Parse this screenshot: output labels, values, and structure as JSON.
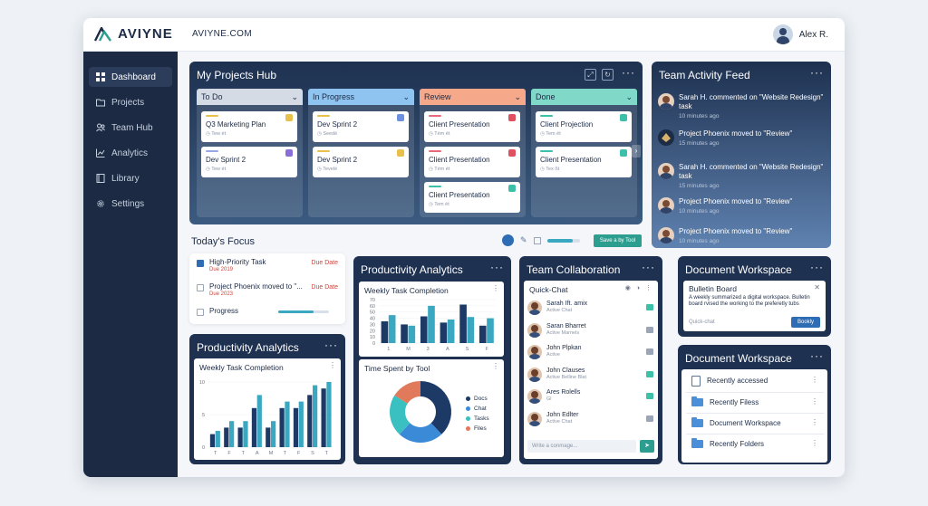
{
  "app": {
    "brand": "AVIYNE",
    "domain": "AVIYNE.COM",
    "user": "Alex R."
  },
  "sidebar": {
    "items": [
      {
        "label": "Dashboard",
        "icon": "grid-icon",
        "active": true
      },
      {
        "label": "Projects",
        "icon": "folder-icon"
      },
      {
        "label": "Team Hub",
        "icon": "people-icon"
      },
      {
        "label": "Analytics",
        "icon": "chart-icon"
      },
      {
        "label": "Library",
        "icon": "book-icon"
      },
      {
        "label": "Settings",
        "icon": "gear-icon"
      }
    ]
  },
  "hub": {
    "title": "My Projects Hub",
    "columns": [
      {
        "label": "To Do",
        "color": "#d4dbe4",
        "cards": [
          {
            "title": "Q3 Marketing Plan",
            "meta": "Tew ét",
            "bar": "#e8c04a",
            "check": "#e8c04a"
          },
          {
            "title": "Dev Sprint 2",
            "meta": "Tew ét",
            "bar": "#9aa6e8",
            "check": "#8a6ed8"
          }
        ]
      },
      {
        "label": "In Progress",
        "color": "#8fc3f0",
        "cards": [
          {
            "title": "Dev Sprint 2",
            "meta": "Seedé",
            "bar": "#e8c04a",
            "check": "#6d8fe0"
          },
          {
            "title": "Dev Sprint 2",
            "meta": "Tevelé",
            "bar": "#e8c04a",
            "check": "#e8c04a"
          }
        ]
      },
      {
        "label": "Review",
        "color": "#f5a98a",
        "cards": [
          {
            "title": "Client Presentation",
            "meta": "Tém ét",
            "bar": "#e86a7a",
            "check": "#e05060"
          },
          {
            "title": "Client Presentation",
            "meta": "Tém ét",
            "bar": "#e86a7a",
            "check": "#e05060"
          },
          {
            "title": "Client Presentation",
            "meta": "Tem ét",
            "bar": "#3cc0a8",
            "check": "#3cc0a8"
          }
        ]
      },
      {
        "label": "Done",
        "color": "#7fd8c8",
        "cards": [
          {
            "title": "Client Projection",
            "meta": "Tem ét",
            "bar": "#3cc0a8",
            "check": "#3cc0a8"
          },
          {
            "title": "Client Presentation",
            "meta": "Tex ßt",
            "bar": "#3cc0a8",
            "check": "#3cc0a8"
          }
        ]
      }
    ]
  },
  "feed": {
    "title": "Team Activity Feed",
    "items": [
      {
        "text": "Sarah H. commented on \"Website Redesign\" task",
        "time": "10 minutes ago",
        "avatar": "person"
      },
      {
        "text": "Project Phoenix moved to \"Review\"",
        "time": "15 minutes ago",
        "avatar": "phoenix"
      },
      {
        "text": "Sarah H. commented on \"Website Redesign\" task",
        "time": "15 minutes ago",
        "avatar": "person"
      },
      {
        "text": "Project Phoenix moved to \"Review\"",
        "time": "10 minutes ago",
        "avatar": "person"
      },
      {
        "text": "Project Phoenix moved to \"Review\"",
        "time": "10 minutes ago",
        "avatar": "person"
      }
    ]
  },
  "focus": {
    "title": "Today's Focus",
    "save_label": "Save a by Tool",
    "items": [
      {
        "label": "High-Priority Task",
        "due": "Due 2019",
        "date": "Due Date",
        "checked": true
      },
      {
        "label": "Project Phoenix moved to \"...",
        "due": "Due 2023",
        "date": "Due Date",
        "checked": false
      },
      {
        "label": "Progress",
        "checked": false,
        "progress": 0.7
      }
    ]
  },
  "analytics_small": {
    "title": "Productivity Analytics",
    "subtitle": "Weekly Task Completion",
    "chart_data": {
      "type": "bar",
      "categories": [
        "T",
        "F",
        "T",
        "A",
        "M",
        "T",
        "F",
        "S",
        "T"
      ],
      "series": [
        {
          "values": [
            2,
            3,
            3,
            6,
            3,
            6,
            6,
            8,
            9
          ],
          "color": "#1d3a66"
        },
        {
          "values": [
            2.5,
            4,
            4,
            8,
            4,
            7,
            7,
            9.5,
            10
          ],
          "color": "#3aa8c0"
        }
      ],
      "yticks": [
        0,
        5,
        10
      ],
      "ylim": [
        0,
        10
      ]
    }
  },
  "analytics_big": {
    "title": "Productivity Analytics",
    "subtitle": "Weekly Task Completion",
    "chart_data": {
      "type": "bar",
      "categories": [
        "1",
        "M",
        "3",
        "A",
        "S",
        "F"
      ],
      "series": [
        {
          "values": [
            35,
            30,
            43,
            33,
            62,
            28
          ],
          "color": "#1d3a66"
        },
        {
          "values": [
            45,
            28,
            60,
            38,
            42,
            40
          ],
          "color": "#3aa8c0"
        }
      ],
      "yticks": [
        70,
        60,
        50,
        40,
        30,
        20,
        10,
        0
      ],
      "ylim": [
        0,
        70
      ]
    },
    "pie_title": "Time Spent by Tool",
    "pie_data": {
      "type": "pie",
      "labels": [
        "Docs",
        "Chat",
        "Tasks",
        "Files"
      ],
      "values": [
        38,
        24,
        22,
        16
      ],
      "colors": [
        "#1d3a66",
        "#3a8ad8",
        "#3ac0c0",
        "#e07a5a"
      ]
    }
  },
  "collab": {
    "title": "Team Collaboration",
    "chat_title": "Quick-Chat",
    "input_placeholder": "Write a conmage...",
    "people": [
      {
        "name": "Sarah Ift. amix",
        "status": "Active Chat",
        "msg": "#3cc0a8"
      },
      {
        "name": "Saran Bharret",
        "status": "Active Marnels",
        "msg": "#9aa6b8"
      },
      {
        "name": "John Plpkan",
        "status": "Active",
        "msg": "#9aa6b8"
      },
      {
        "name": "John Clauses",
        "status": "Active Belline Blat",
        "msg": "#3cc0a8"
      },
      {
        "name": "Ares Rolells",
        "status": "Gl",
        "msg": "#3cc0a8"
      },
      {
        "name": "John Edlter",
        "status": "Active Chat",
        "msg": "#9aa6b8"
      }
    ]
  },
  "doc1": {
    "title": "Document Workspace",
    "board_title": "Bulletin Board",
    "board_text": "A weekly summarized a digital workspace. Bulletin board rvised the working to the preferetly tubs",
    "board_hint": "Quick-chat",
    "board_button": "Bookly"
  },
  "doc2": {
    "title": "Document Workspace",
    "items": [
      {
        "label": "Recently accessed",
        "icon": "file"
      },
      {
        "label": "Recently Filess",
        "icon": "folder"
      },
      {
        "label": "Document Workspace",
        "icon": "folder"
      },
      {
        "label": "Recently Folders",
        "icon": "folder"
      }
    ]
  }
}
